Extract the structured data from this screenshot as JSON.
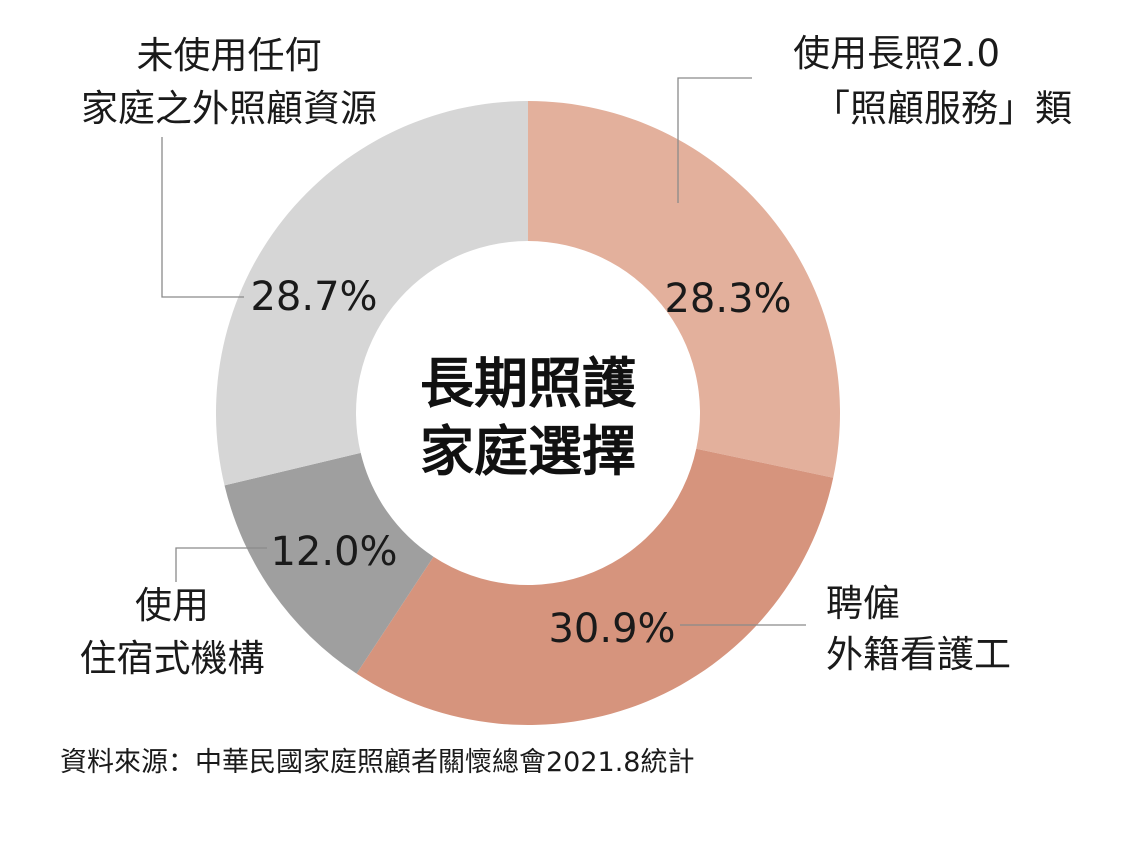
{
  "chart_data": {
    "type": "pie",
    "variant": "donut",
    "center_title": [
      "長期照護",
      "家庭選擇"
    ],
    "slices": [
      {
        "label": [
          "使用長照2.0",
          "「照顧服務」類"
        ],
        "value": 28.3,
        "display": "28.3%",
        "color": "#e3b09c"
      },
      {
        "label": [
          "聘僱",
          "外籍看護工"
        ],
        "value": 30.9,
        "display": "30.9%",
        "color": "#d6947d"
      },
      {
        "label": [
          "使用",
          "住宿式機構"
        ],
        "value": 12.0,
        "display": "12.0%",
        "color": "#9f9f9f"
      },
      {
        "label": [
          "未使用任何",
          "家庭之外照顧資源"
        ],
        "value": 28.7,
        "display": "28.7%",
        "color": "#d6d6d6"
      }
    ],
    "source": "資料來源：中華民國家庭照顧者關懷總會2021.8統計"
  }
}
